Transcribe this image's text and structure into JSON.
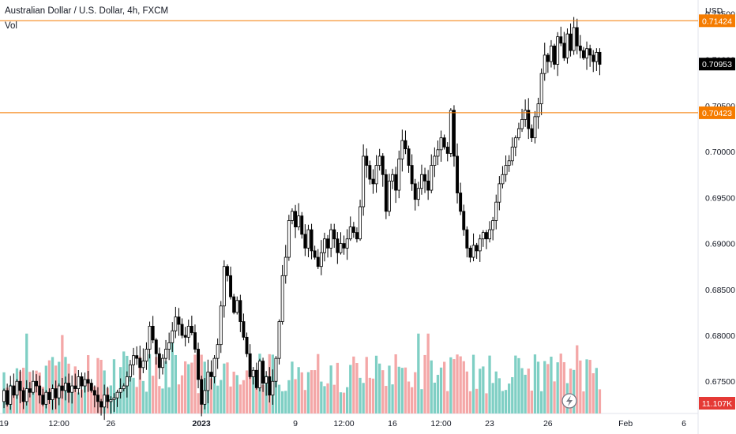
{
  "header": {
    "symbol_line": "Australian Dollar / U.S. Dollar, 4h, FXCM",
    "volume_label": "Vol"
  },
  "currency_label": "USD",
  "colors": {
    "up": "#000000",
    "down": "#000000",
    "vol_up": "#7fcfc4",
    "vol_down": "#f4a7a7",
    "hline": "#f57c00",
    "axis_text": "#131722",
    "grid": "#e0e3eb",
    "last_price_bg": "#000000",
    "hline_label_bg": "#f57c00",
    "vol_label_bg": "#e53935"
  },
  "chart_data": {
    "type": "candlestick",
    "timeframe": "4h",
    "ylim": [
      0.6715,
      0.7165
    ],
    "y_ticks": [
      0.675,
      0.68,
      0.685,
      0.69,
      0.695,
      0.7,
      0.705,
      0.71,
      0.715
    ],
    "y_tick_labels": [
      "0.67500",
      "0.68000",
      "0.68500",
      "0.69000",
      "0.69500",
      "0.70000",
      "0.70500",
      "0.71000",
      "0.71500"
    ],
    "x_ticks": [
      {
        "label": "19",
        "bold": false
      },
      {
        "label": "12:00",
        "bold": false
      },
      {
        "label": "26",
        "bold": false
      },
      {
        "label": "2023",
        "bold": true
      },
      {
        "label": "9",
        "bold": false
      },
      {
        "label": "12:00",
        "bold": false
      },
      {
        "label": "16",
        "bold": false
      },
      {
        "label": "12:00",
        "bold": false
      },
      {
        "label": "23",
        "bold": false
      },
      {
        "label": "26",
        "bold": false
      },
      {
        "label": "Feb",
        "bold": false
      },
      {
        "label": "6",
        "bold": false
      }
    ],
    "x_tick_index": [
      0,
      17,
      33,
      61,
      90,
      105,
      120,
      135,
      150,
      168,
      192,
      210
    ],
    "horizontal_lines": [
      {
        "value": 0.71424,
        "label": "0.71424"
      },
      {
        "value": 0.70423,
        "label": "0.70423"
      }
    ],
    "last_price": {
      "value": 0.70953,
      "label": "0.70953"
    },
    "volume_last_label": "11.107K",
    "volume_max_k": 26,
    "price_path": [
      0.6728,
      0.674,
      0.6725,
      0.6745,
      0.6735,
      0.675,
      0.674,
      0.6728,
      0.6742,
      0.6738,
      0.675,
      0.6745,
      0.6735,
      0.6725,
      0.6738,
      0.673,
      0.6742,
      0.6732,
      0.6745,
      0.674,
      0.6748,
      0.6738,
      0.6745,
      0.6742,
      0.6755,
      0.6745,
      0.6752,
      0.6748,
      0.674,
      0.6735,
      0.6728,
      0.6722,
      0.6735,
      0.6728,
      0.673,
      0.6732,
      0.6738,
      0.6742,
      0.6745,
      0.6755,
      0.6768,
      0.6778,
      0.6775,
      0.6765,
      0.6772,
      0.6785,
      0.681,
      0.6795,
      0.678,
      0.6765,
      0.6775,
      0.6785,
      0.6792,
      0.6805,
      0.682,
      0.6812,
      0.68,
      0.6798,
      0.681,
      0.6803,
      0.6785,
      0.6752,
      0.6725,
      0.674,
      0.676,
      0.6755,
      0.6775,
      0.679,
      0.6832,
      0.6875,
      0.6865,
      0.6842,
      0.6825,
      0.6838,
      0.6815,
      0.6798,
      0.678,
      0.6755,
      0.6762,
      0.6743,
      0.6772,
      0.6748,
      0.6755,
      0.6735,
      0.675,
      0.6775,
      0.6815,
      0.6865,
      0.6885,
      0.6925,
      0.6935,
      0.6918,
      0.693,
      0.691,
      0.6895,
      0.6915,
      0.6892,
      0.6885,
      0.6875,
      0.689,
      0.6905,
      0.6895,
      0.6915,
      0.6905,
      0.689,
      0.69,
      0.6895,
      0.6905,
      0.6918,
      0.6912,
      0.6905,
      0.694,
      0.6995,
      0.6985,
      0.697,
      0.6965,
      0.6985,
      0.6995,
      0.6975,
      0.6935,
      0.6968,
      0.6975,
      0.6958,
      0.6992,
      0.7012,
      0.7003,
      0.6985,
      0.6965,
      0.6948,
      0.696,
      0.6975,
      0.6968,
      0.6958,
      0.6985,
      0.6995,
      0.7002,
      0.7015,
      0.7005,
      0.6998,
      0.7045,
      0.6995,
      0.6955,
      0.6935,
      0.6915,
      0.6895,
      0.6885,
      0.6898,
      0.6892,
      0.6905,
      0.6912,
      0.6905,
      0.6915,
      0.6925,
      0.6945,
      0.6965,
      0.6975,
      0.6985,
      0.699,
      0.7005,
      0.7015,
      0.7025,
      0.7035,
      0.7045,
      0.7025,
      0.7015,
      0.7038,
      0.7052,
      0.7085,
      0.7105,
      0.7098,
      0.7115,
      0.7095,
      0.7125,
      0.7118,
      0.7102,
      0.7128,
      0.711,
      0.7135,
      0.7115,
      0.711,
      0.7102,
      0.7112,
      0.7105,
      0.7098,
      0.7108,
      0.7095
    ],
    "volume_seed": 20
  }
}
